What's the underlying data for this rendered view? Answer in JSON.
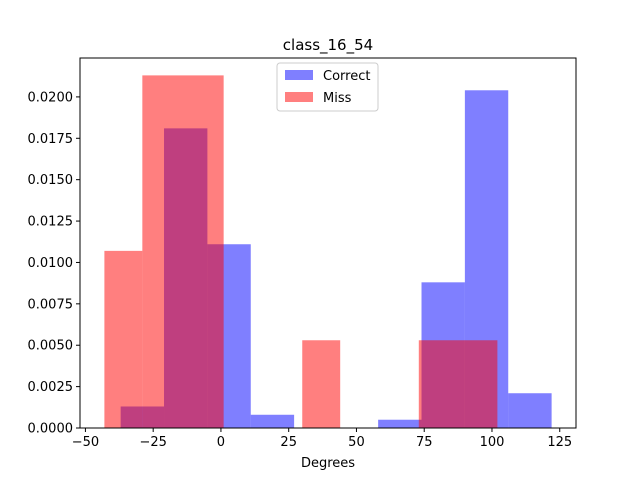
{
  "chart_data": {
    "type": "bar",
    "title": "class_16_54",
    "xlabel": "Degrees",
    "ylabel": "",
    "xlim": [
      -52,
      131
    ],
    "ylim": [
      0,
      0.02235
    ],
    "xticks": [
      -50,
      -25,
      0,
      25,
      50,
      75,
      100,
      125
    ],
    "xtick_labels": [
      "−50",
      "−25",
      "0",
      "25",
      "50",
      "75",
      "100",
      "125"
    ],
    "yticks": [
      0.0,
      0.0025,
      0.005,
      0.0075,
      0.01,
      0.0125,
      0.015,
      0.0175,
      0.02
    ],
    "ytick_labels": [
      "0.0000",
      "0.0025",
      "0.0050",
      "0.0075",
      "0.0100",
      "0.0125",
      "0.0150",
      "0.0175",
      "0.0200"
    ],
    "legend_position": "top-center",
    "series": [
      {
        "name": "Correct",
        "color": "#0000ff",
        "alpha": 0.5,
        "bins": [
          {
            "x0": -37,
            "x1": -21,
            "value": 0.0013
          },
          {
            "x0": -21,
            "x1": -5,
            "value": 0.0181
          },
          {
            "x0": -5,
            "x1": 11,
            "value": 0.0111
          },
          {
            "x0": 11,
            "x1": 27,
            "value": 0.0008
          },
          {
            "x0": 27,
            "x1": 43,
            "value": 0.0
          },
          {
            "x0": 43,
            "x1": 58,
            "value": 0.0
          },
          {
            "x0": 58,
            "x1": 74,
            "value": 0.0005
          },
          {
            "x0": 74,
            "x1": 90,
            "value": 0.0088
          },
          {
            "x0": 90,
            "x1": 106,
            "value": 0.0204
          },
          {
            "x0": 106,
            "x1": 122,
            "value": 0.0021
          }
        ]
      },
      {
        "name": "Miss",
        "color": "#ff0000",
        "alpha": 0.5,
        "bins": [
          {
            "x0": -43,
            "x1": -29,
            "value": 0.0107
          },
          {
            "x0": -29,
            "x1": 1,
            "value": 0.0213
          },
          {
            "x0": 1,
            "x1": 30,
            "value": 0.0
          },
          {
            "x0": 30,
            "x1": 44,
            "value": 0.0053
          },
          {
            "x0": 44,
            "x1": 73,
            "value": 0.0
          },
          {
            "x0": 73,
            "x1": 102,
            "value": 0.0053
          }
        ]
      }
    ]
  }
}
